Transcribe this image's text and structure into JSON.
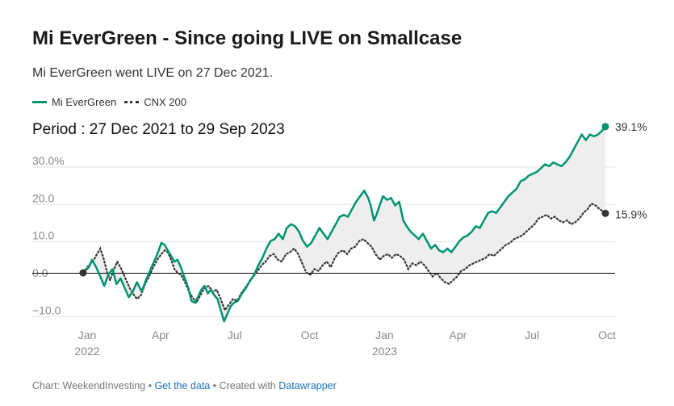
{
  "header": {
    "title": "Mi EverGreen - Since going LIVE on Smallcase",
    "subtitle": "Mi EverGreen went LIVE on 27 Dec 2021.",
    "period": "Period : 27 Dec 2021 to 29 Sep 2023"
  },
  "footer": {
    "source": "Chart: WeekendInvesting",
    "sep1": " • ",
    "get_data": "Get the data",
    "sep2": " • Created with ",
    "tool": "Datawrapper"
  },
  "colors": {
    "evergreen": "#00936e",
    "cnx": "#333333",
    "fill": "#eeeeee",
    "grid": "#e3e3e3",
    "zero": "#000000"
  },
  "chart_data": {
    "type": "line",
    "title": "Mi EverGreen - Since going LIVE on Smallcase",
    "ylim": [
      -12,
      40
    ],
    "yticks": [
      30,
      20,
      10,
      0,
      -10
    ],
    "ytick_labels": [
      "30.0%",
      "20.0",
      "10.0",
      "0.0",
      "−10.0"
    ],
    "x_range": [
      "2021-12-27",
      "2023-10-05"
    ],
    "xticks": [
      {
        "date": "2022-01-01",
        "label": "Jan",
        "year": "2022"
      },
      {
        "date": "2022-04-01",
        "label": "Apr",
        "year": ""
      },
      {
        "date": "2022-07-01",
        "label": "Jul",
        "year": ""
      },
      {
        "date": "2022-10-01",
        "label": "Oct",
        "year": ""
      },
      {
        "date": "2023-01-01",
        "label": "Jan",
        "year": "2023"
      },
      {
        "date": "2023-04-01",
        "label": "Apr",
        "year": ""
      },
      {
        "date": "2023-07-01",
        "label": "Jul",
        "year": ""
      },
      {
        "date": "2023-10-01",
        "label": "Oct",
        "year": ""
      }
    ],
    "grid": true,
    "legend": "top-left",
    "series": [
      {
        "name": "Mi EverGreen",
        "end_label": "39.1%",
        "points": [
          [
            "2021-12-27",
            0
          ],
          [
            "2022-01-03",
            1.5
          ],
          [
            "2022-01-07",
            3.5
          ],
          [
            "2022-01-12",
            1.5
          ],
          [
            "2022-01-17",
            -1
          ],
          [
            "2022-01-22",
            -3.5
          ],
          [
            "2022-01-27",
            -0.5
          ],
          [
            "2022-02-01",
            1
          ],
          [
            "2022-02-06",
            -3
          ],
          [
            "2022-02-11",
            -1.5
          ],
          [
            "2022-02-16",
            -4
          ],
          [
            "2022-02-21",
            -6.5
          ],
          [
            "2022-02-26",
            -5
          ],
          [
            "2022-03-03",
            -2.5
          ],
          [
            "2022-03-09",
            -5
          ],
          [
            "2022-03-14",
            -2
          ],
          [
            "2022-03-19",
            0.5
          ],
          [
            "2022-03-24",
            3
          ],
          [
            "2022-03-29",
            5.5
          ],
          [
            "2022-04-02",
            8
          ],
          [
            "2022-04-06",
            7.5
          ],
          [
            "2022-04-10",
            6
          ],
          [
            "2022-04-14",
            4.5
          ],
          [
            "2022-04-18",
            3
          ],
          [
            "2022-04-22",
            3.5
          ],
          [
            "2022-04-26",
            1.5
          ],
          [
            "2022-04-30",
            -1
          ],
          [
            "2022-05-05",
            -4
          ],
          [
            "2022-05-09",
            -7.5
          ],
          [
            "2022-05-13",
            -8
          ],
          [
            "2022-05-17",
            -6.5
          ],
          [
            "2022-05-21",
            -4.5
          ],
          [
            "2022-05-25",
            -3.5
          ],
          [
            "2022-05-29",
            -5.5
          ],
          [
            "2022-06-02",
            -4.5
          ],
          [
            "2022-06-06",
            -6
          ],
          [
            "2022-06-10",
            -7
          ],
          [
            "2022-06-14",
            -10
          ],
          [
            "2022-06-18",
            -13
          ],
          [
            "2022-06-22",
            -11
          ],
          [
            "2022-06-26",
            -9
          ],
          [
            "2022-06-30",
            -8
          ],
          [
            "2022-07-05",
            -7.5
          ],
          [
            "2022-07-10",
            -5.5
          ],
          [
            "2022-07-15",
            -4
          ],
          [
            "2022-07-20",
            -2
          ],
          [
            "2022-07-25",
            -0.5
          ],
          [
            "2022-07-30",
            2
          ],
          [
            "2022-08-04",
            4
          ],
          [
            "2022-08-09",
            6.5
          ],
          [
            "2022-08-14",
            8.5
          ],
          [
            "2022-08-19",
            9
          ],
          [
            "2022-08-24",
            10.5
          ],
          [
            "2022-08-29",
            9
          ],
          [
            "2022-09-03",
            12
          ],
          [
            "2022-09-08",
            13
          ],
          [
            "2022-09-13",
            12.5
          ],
          [
            "2022-09-18",
            11
          ],
          [
            "2022-09-23",
            8.5
          ],
          [
            "2022-09-28",
            7
          ],
          [
            "2022-10-03",
            8
          ],
          [
            "2022-10-08",
            10
          ],
          [
            "2022-10-13",
            12
          ],
          [
            "2022-10-18",
            10.5
          ],
          [
            "2022-10-23",
            9
          ],
          [
            "2022-10-28",
            11
          ],
          [
            "2022-11-02",
            13
          ],
          [
            "2022-11-07",
            15
          ],
          [
            "2022-11-12",
            15.5
          ],
          [
            "2022-11-17",
            15
          ],
          [
            "2022-11-22",
            17
          ],
          [
            "2022-11-27",
            19
          ],
          [
            "2022-12-02",
            20.5
          ],
          [
            "2022-12-07",
            22
          ],
          [
            "2022-12-12",
            20
          ],
          [
            "2022-12-15",
            18
          ],
          [
            "2022-12-19",
            14
          ],
          [
            "2022-12-22",
            15.5
          ],
          [
            "2022-12-26",
            18
          ],
          [
            "2022-12-30",
            20.5
          ],
          [
            "2023-01-04",
            19.5
          ],
          [
            "2023-01-09",
            20
          ],
          [
            "2023-01-14",
            18
          ],
          [
            "2023-01-19",
            19
          ],
          [
            "2023-01-24",
            14
          ],
          [
            "2023-01-28",
            12.5
          ],
          [
            "2023-02-02",
            11
          ],
          [
            "2023-02-07",
            10
          ],
          [
            "2023-02-12",
            9
          ],
          [
            "2023-02-17",
            10.5
          ],
          [
            "2023-02-22",
            8.5
          ],
          [
            "2023-02-27",
            6.5
          ],
          [
            "2023-03-04",
            7.5
          ],
          [
            "2023-03-09",
            6
          ],
          [
            "2023-03-14",
            5.5
          ],
          [
            "2023-03-19",
            6.5
          ],
          [
            "2023-03-24",
            5.5
          ],
          [
            "2023-03-29",
            7
          ],
          [
            "2023-04-03",
            8.5
          ],
          [
            "2023-04-08",
            9.5
          ],
          [
            "2023-04-13",
            10
          ],
          [
            "2023-04-18",
            11
          ],
          [
            "2023-04-23",
            12.5
          ],
          [
            "2023-04-28",
            12
          ],
          [
            "2023-05-03",
            14
          ],
          [
            "2023-05-08",
            16
          ],
          [
            "2023-05-13",
            16.5
          ],
          [
            "2023-05-18",
            16
          ],
          [
            "2023-05-23",
            17.5
          ],
          [
            "2023-05-28",
            19
          ],
          [
            "2023-06-02",
            20.5
          ],
          [
            "2023-06-07",
            21.5
          ],
          [
            "2023-06-12",
            22.5
          ],
          [
            "2023-06-17",
            24.5
          ],
          [
            "2023-06-22",
            25
          ],
          [
            "2023-06-27",
            26
          ],
          [
            "2023-07-02",
            26.5
          ],
          [
            "2023-07-07",
            27
          ],
          [
            "2023-07-12",
            28
          ],
          [
            "2023-07-17",
            29
          ],
          [
            "2023-07-22",
            28.5
          ],
          [
            "2023-07-27",
            29.5
          ],
          [
            "2023-08-01",
            29
          ],
          [
            "2023-08-06",
            28.5
          ],
          [
            "2023-08-11",
            29.5
          ],
          [
            "2023-08-16",
            31
          ],
          [
            "2023-08-21",
            33
          ],
          [
            "2023-08-26",
            35
          ],
          [
            "2023-08-31",
            37
          ],
          [
            "2023-09-05",
            35.5
          ],
          [
            "2023-09-10",
            37
          ],
          [
            "2023-09-15",
            36.5
          ],
          [
            "2023-09-20",
            37
          ],
          [
            "2023-09-25",
            38
          ],
          [
            "2023-09-29",
            39.1
          ]
        ]
      },
      {
        "name": "CNX 200",
        "end_label": "15.9%",
        "points": [
          [
            "2021-12-27",
            0
          ],
          [
            "2022-01-03",
            2
          ],
          [
            "2022-01-08",
            3
          ],
          [
            "2022-01-13",
            5
          ],
          [
            "2022-01-17",
            6.5
          ],
          [
            "2022-01-21",
            4
          ],
          [
            "2022-01-25",
            0.5
          ],
          [
            "2022-01-29",
            -2
          ],
          [
            "2022-02-03",
            1
          ],
          [
            "2022-02-07",
            3
          ],
          [
            "2022-02-12",
            1
          ],
          [
            "2022-02-17",
            -1.5
          ],
          [
            "2022-02-22",
            -4
          ],
          [
            "2022-02-26",
            -5.5
          ],
          [
            "2022-03-03",
            -7
          ],
          [
            "2022-03-08",
            -6
          ],
          [
            "2022-03-13",
            -3
          ],
          [
            "2022-03-18",
            -1
          ],
          [
            "2022-03-23",
            1.5
          ],
          [
            "2022-03-28",
            3.5
          ],
          [
            "2022-04-02",
            5
          ],
          [
            "2022-04-06",
            6
          ],
          [
            "2022-04-10",
            5.5
          ],
          [
            "2022-04-14",
            3.5
          ],
          [
            "2022-04-18",
            1
          ],
          [
            "2022-04-22",
            0
          ],
          [
            "2022-04-26",
            -0.5
          ],
          [
            "2022-04-30",
            -2
          ],
          [
            "2022-05-05",
            -4.5
          ],
          [
            "2022-05-10",
            -6.5
          ],
          [
            "2022-05-15",
            -8
          ],
          [
            "2022-05-20",
            -6
          ],
          [
            "2022-05-25",
            -4
          ],
          [
            "2022-05-30",
            -3.5
          ],
          [
            "2022-06-04",
            -5
          ],
          [
            "2022-06-09",
            -4.5
          ],
          [
            "2022-06-14",
            -7
          ],
          [
            "2022-06-19",
            -10
          ],
          [
            "2022-06-24",
            -8.5
          ],
          [
            "2022-06-29",
            -7
          ],
          [
            "2022-07-04",
            -7.5
          ],
          [
            "2022-07-09",
            -5.5
          ],
          [
            "2022-07-14",
            -4
          ],
          [
            "2022-07-19",
            -2.5
          ],
          [
            "2022-07-24",
            -1
          ],
          [
            "2022-07-29",
            0.5
          ],
          [
            "2022-08-03",
            2
          ],
          [
            "2022-08-08",
            3
          ],
          [
            "2022-08-13",
            4.5
          ],
          [
            "2022-08-18",
            5
          ],
          [
            "2022-08-23",
            3.5
          ],
          [
            "2022-08-28",
            3
          ],
          [
            "2022-09-02",
            5
          ],
          [
            "2022-09-07",
            5.5
          ],
          [
            "2022-09-12",
            6.5
          ],
          [
            "2022-09-17",
            5
          ],
          [
            "2022-09-22",
            2.5
          ],
          [
            "2022-09-27",
            0
          ],
          [
            "2022-10-02",
            -0.5
          ],
          [
            "2022-10-07",
            1
          ],
          [
            "2022-10-12",
            0.5
          ],
          [
            "2022-10-17",
            2
          ],
          [
            "2022-10-22",
            3
          ],
          [
            "2022-10-27",
            1.5
          ],
          [
            "2022-11-01",
            4
          ],
          [
            "2022-11-06",
            5.5
          ],
          [
            "2022-11-11",
            6
          ],
          [
            "2022-11-16",
            5
          ],
          [
            "2022-11-21",
            6.5
          ],
          [
            "2022-11-26",
            7
          ],
          [
            "2022-12-01",
            8.5
          ],
          [
            "2022-12-06",
            9
          ],
          [
            "2022-12-11",
            8
          ],
          [
            "2022-12-16",
            7
          ],
          [
            "2022-12-21",
            5
          ],
          [
            "2022-12-26",
            3.5
          ],
          [
            "2022-12-31",
            4.5
          ],
          [
            "2023-01-05",
            5
          ],
          [
            "2023-01-10",
            4
          ],
          [
            "2023-01-15",
            5
          ],
          [
            "2023-01-20",
            4.5
          ],
          [
            "2023-01-25",
            3.5
          ],
          [
            "2023-01-30",
            1
          ],
          [
            "2023-02-04",
            2.5
          ],
          [
            "2023-02-09",
            2
          ],
          [
            "2023-02-14",
            3
          ],
          [
            "2023-02-19",
            2
          ],
          [
            "2023-02-24",
            0.5
          ],
          [
            "2023-03-01",
            -1
          ],
          [
            "2023-03-06",
            0
          ],
          [
            "2023-03-11",
            -1.5
          ],
          [
            "2023-03-16",
            -2.5
          ],
          [
            "2023-03-21",
            -3
          ],
          [
            "2023-03-26",
            -2
          ],
          [
            "2023-03-31",
            -1
          ],
          [
            "2023-04-05",
            0.5
          ],
          [
            "2023-04-10",
            1
          ],
          [
            "2023-04-15",
            2
          ],
          [
            "2023-04-20",
            2.5
          ],
          [
            "2023-04-25",
            3
          ],
          [
            "2023-04-30",
            3.5
          ],
          [
            "2023-05-05",
            4
          ],
          [
            "2023-05-10",
            5
          ],
          [
            "2023-05-15",
            4.5
          ],
          [
            "2023-05-20",
            5.5
          ],
          [
            "2023-05-25",
            6.5
          ],
          [
            "2023-05-30",
            7.5
          ],
          [
            "2023-06-04",
            8
          ],
          [
            "2023-06-09",
            9
          ],
          [
            "2023-06-14",
            9.5
          ],
          [
            "2023-06-19",
            10
          ],
          [
            "2023-06-24",
            11
          ],
          [
            "2023-06-29",
            12
          ],
          [
            "2023-07-04",
            13
          ],
          [
            "2023-07-09",
            14.5
          ],
          [
            "2023-07-14",
            15
          ],
          [
            "2023-07-19",
            15.5
          ],
          [
            "2023-07-24",
            14.5
          ],
          [
            "2023-07-29",
            15
          ],
          [
            "2023-08-03",
            14
          ],
          [
            "2023-08-08",
            13.5
          ],
          [
            "2023-08-13",
            14
          ],
          [
            "2023-08-18",
            13
          ],
          [
            "2023-08-23",
            13.5
          ],
          [
            "2023-08-28",
            14.5
          ],
          [
            "2023-09-02",
            16
          ],
          [
            "2023-09-07",
            17
          ],
          [
            "2023-09-12",
            18.5
          ],
          [
            "2023-09-17",
            18
          ],
          [
            "2023-09-22",
            17
          ],
          [
            "2023-09-26",
            16.5
          ],
          [
            "2023-09-29",
            15.9
          ]
        ]
      }
    ]
  }
}
